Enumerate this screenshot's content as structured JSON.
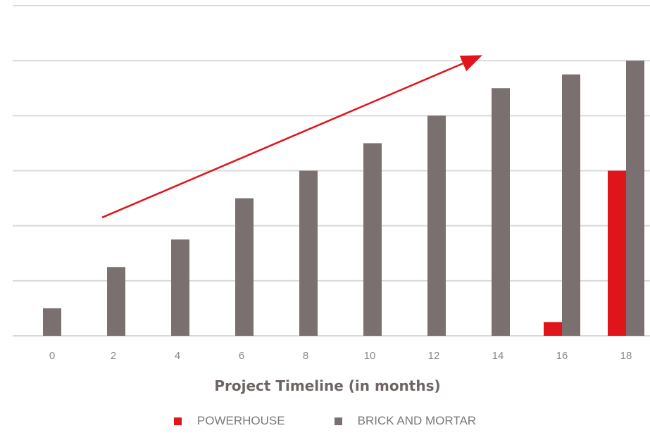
{
  "chart_data": {
    "type": "bar",
    "title": "",
    "xlabel": "Project Timeline (in months)",
    "ylabel": "",
    "categories": [
      "0",
      "2",
      "4",
      "6",
      "8",
      "10",
      "12",
      "14",
      "16",
      "18"
    ],
    "series": [
      {
        "name": "POWERHOUSE",
        "color": "#e0141b",
        "values": [
          0,
          0,
          0,
          0,
          0,
          0,
          0,
          0,
          0.5,
          6
        ]
      },
      {
        "name": "BRICK AND MORTAR",
        "color": "#7a7070",
        "values": [
          1,
          2.5,
          3.5,
          5,
          6,
          7,
          8,
          9,
          9.5,
          10
        ]
      }
    ],
    "ylim": [
      0,
      12
    ],
    "grid": true,
    "legend_position": "bottom",
    "annotations": [
      {
        "type": "trend-arrow",
        "color": "#e0141b",
        "from": {
          "x": "2",
          "y": 4.3
        },
        "to": {
          "x": "14",
          "y": 10.2
        }
      }
    ]
  }
}
